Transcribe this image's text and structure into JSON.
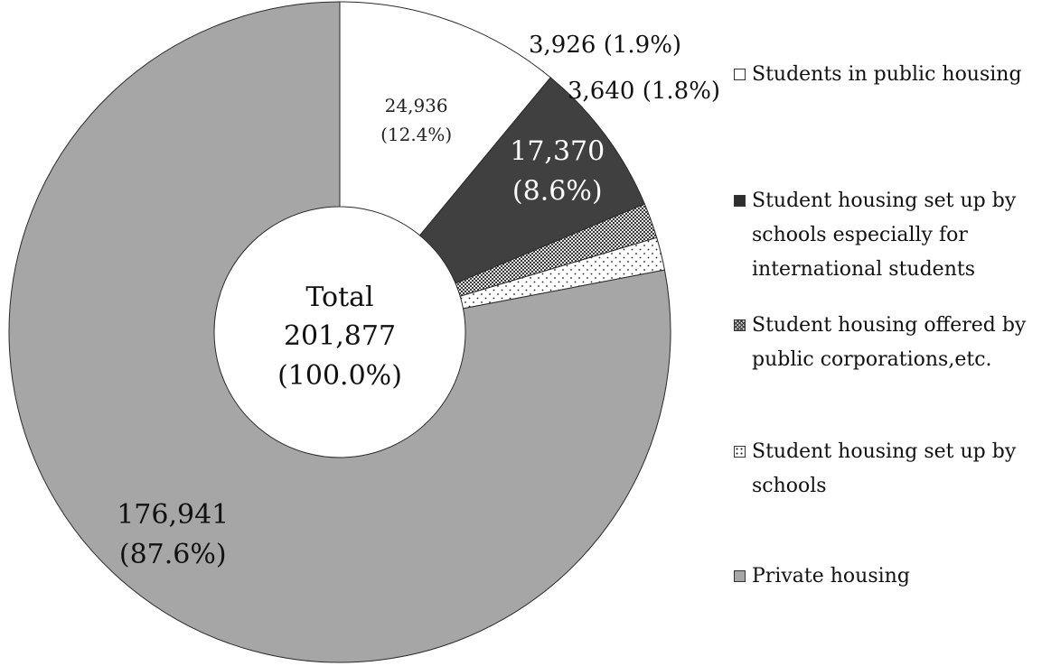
{
  "chart_data": {
    "type": "pie",
    "variant": "donut",
    "categories": [
      "Students in public housing",
      "Student housing set up by schools especially for international students",
      "Student housing offered by public corporations,etc.",
      "Student housing set up by schools",
      "Private housing"
    ],
    "values": [
      24936,
      17370,
      3926,
      3640,
      176941
    ],
    "labels": [
      "24,936 (12.4%)",
      "17,370 (8.6%)",
      "3,926 (1.9%)",
      "3,640 (1.8%)",
      "176,941 (87.6%)"
    ],
    "label_lines": [
      [
        "24,936",
        "(12.4%)"
      ],
      [
        "17,370",
        "(8.6%)"
      ],
      [
        "3,926 (1.9%)"
      ],
      [
        "3,640 (1.8%)"
      ],
      [
        "176,941",
        "(87.6%)"
      ]
    ],
    "colors": [
      "#ffffff",
      "#404040",
      "#bdbdbd",
      "#ffffff",
      "#a6a6a6"
    ],
    "patterns": [
      "solid",
      "solid",
      "crosshatch",
      "dots",
      "solid"
    ],
    "center": {
      "title": "Total",
      "value": "201,877",
      "percent": "(100.0%)"
    },
    "legend": {
      "position": "right",
      "items": [
        {
          "label_lines": [
            "Students in public housing"
          ]
        },
        {
          "label_lines": [
            "Student housing set up by",
            "schools especially for",
            "international students"
          ]
        },
        {
          "label_lines": [
            "Student housing offered by",
            "public corporations,etc."
          ]
        },
        {
          "label_lines": [
            "Student housing set up by",
            "schools"
          ]
        },
        {
          "label_lines": [
            "Private housing"
          ]
        }
      ]
    }
  }
}
